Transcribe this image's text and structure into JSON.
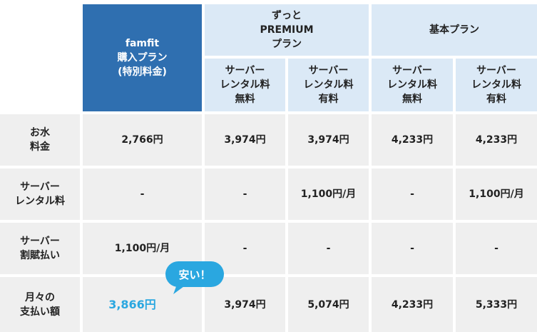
{
  "header": {
    "famfit_lines": [
      "famfit",
      "購入プラン",
      "(特別料金)"
    ],
    "zutto_lines": [
      "ずっと",
      "PREMIUM",
      "プラン"
    ],
    "kihon_label": "基本プラン",
    "sub_free_lines": [
      "サーバー",
      "レンタル料",
      "無料"
    ],
    "sub_paid_lines": [
      "サーバー",
      "レンタル料",
      "有料"
    ]
  },
  "rows": [
    {
      "label_lines": [
        "お水",
        "料金"
      ],
      "values": [
        "2,766円",
        "3,974円",
        "3,974円",
        "4,233円",
        "4,233円"
      ]
    },
    {
      "label_lines": [
        "サーバー",
        "レンタル料"
      ],
      "values": [
        "-",
        "-",
        "1,100円/月",
        "-",
        "1,100円/月"
      ]
    },
    {
      "label_lines": [
        "サーバー",
        "割賦払い"
      ],
      "values": [
        "1,100円/月",
        "-",
        "-",
        "-",
        "-"
      ]
    },
    {
      "label_lines": [
        "月々の",
        "支払い額"
      ],
      "values": [
        "3,866円",
        "3,974円",
        "5,074円",
        "4,233円",
        "5,333円"
      ]
    }
  ],
  "callout": {
    "text": "安い！"
  },
  "colors": {
    "famfit_header": "#2f6fb0",
    "plan_header": "#dbe9f6",
    "row_background": "#efefef",
    "highlight": "#2aa7e0"
  }
}
